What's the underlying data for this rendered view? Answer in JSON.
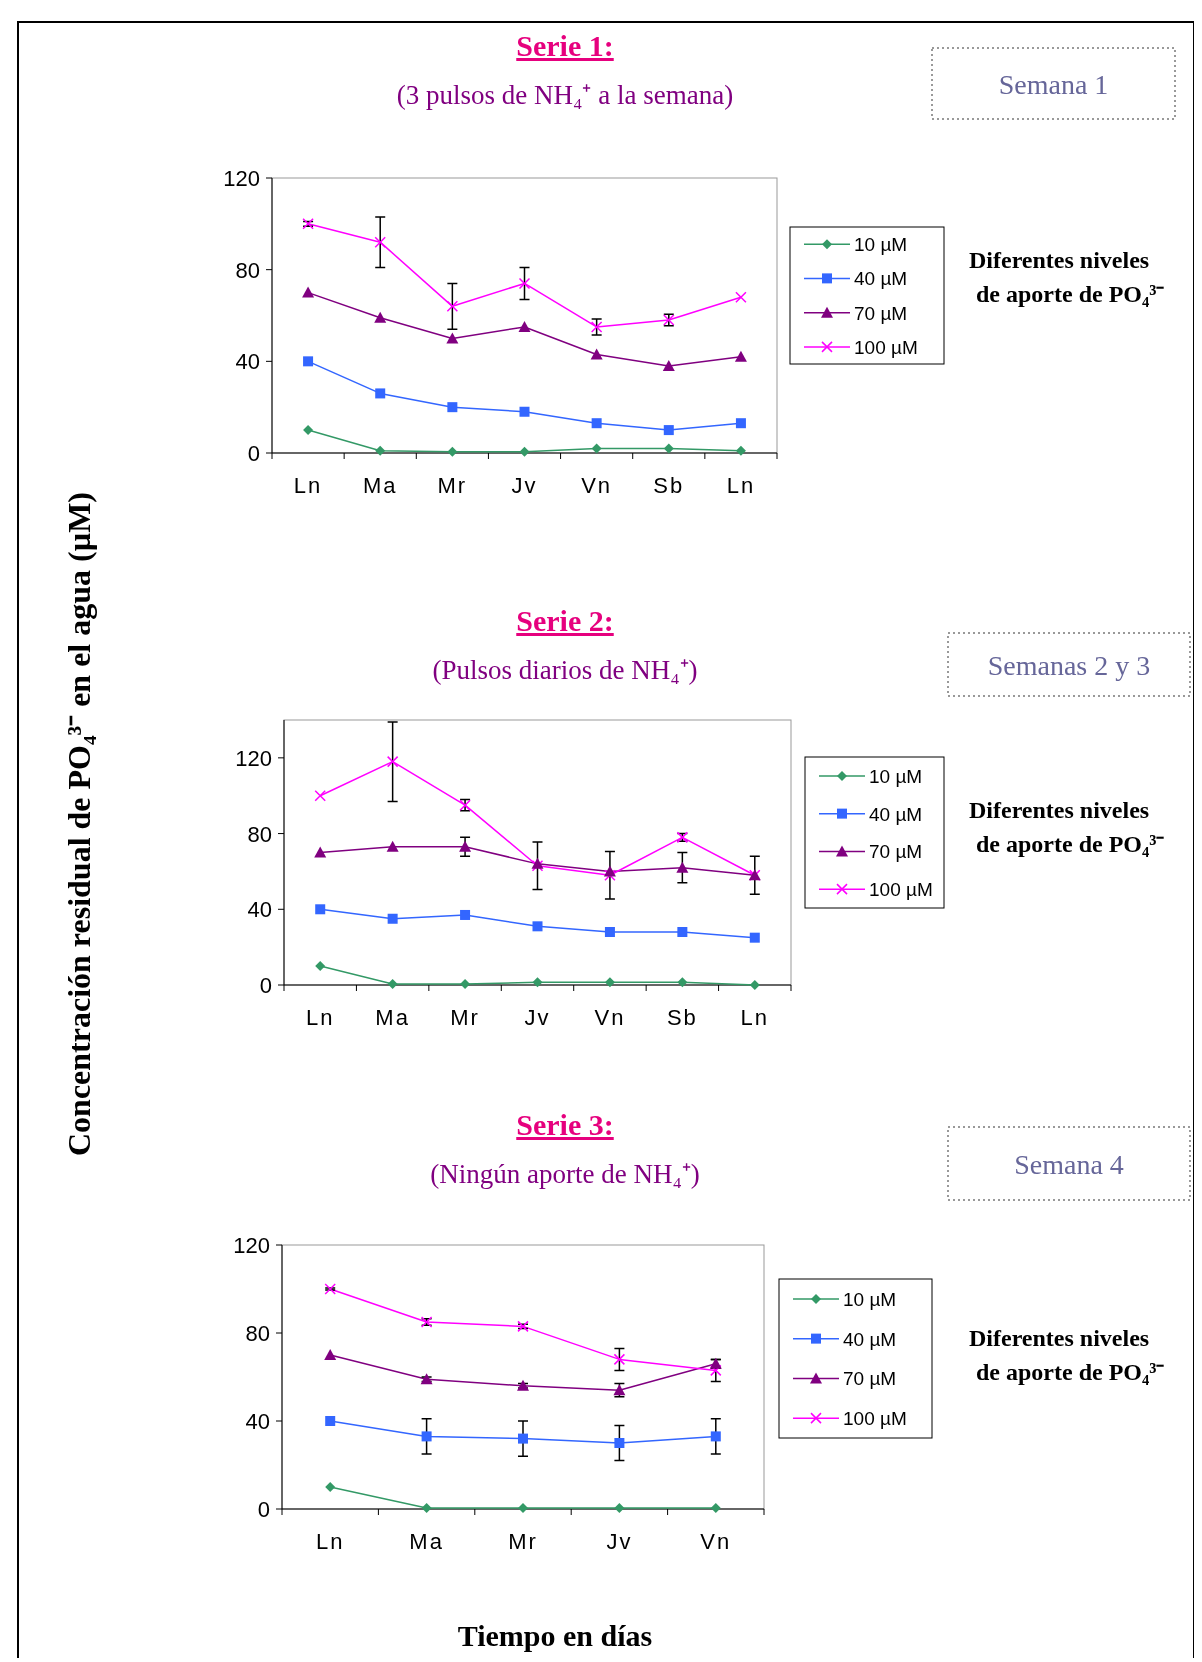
{
  "chart_data": [
    {
      "type": "line",
      "title": "Serie 1:",
      "subtitle": "(3 pulsos de NH₄⁺ a la semana)",
      "ylabel": "Concentración residual de PO₄³⁻ en el agua (µM)",
      "annotations": [
        "Semana 1",
        "Diferentes niveles de aporte de PO₄³⁻"
      ],
      "categories": [
        "Ln",
        "Ma",
        "Mr",
        "Jv",
        "Vn",
        "Sb",
        "Ln"
      ],
      "ylim": [
        0,
        120
      ],
      "yticks": [
        0,
        40,
        80,
        120
      ],
      "legend": "right",
      "grid": false,
      "series": [
        {
          "name": "10 µM",
          "color": "#339966",
          "marker": "diamond",
          "values": [
            10,
            1,
            0.5,
            0.5,
            2,
            2,
            1
          ]
        },
        {
          "name": "40 µM",
          "color": "#3366ff",
          "marker": "square",
          "values": [
            40,
            26,
            20,
            18,
            13,
            10,
            13
          ]
        },
        {
          "name": "70 µM",
          "color": "#800080",
          "marker": "triangle",
          "values": [
            70,
            59,
            50,
            55,
            43,
            38,
            42
          ]
        },
        {
          "name": "100 µM",
          "color": "#ff00ff",
          "marker": "cross",
          "values": [
            100,
            92,
            64,
            74,
            55,
            58,
            68
          ],
          "errors": [
            1,
            11,
            10,
            7,
            3.5,
            2.5,
            null
          ]
        }
      ]
    },
    {
      "type": "line",
      "title": "Serie 2:",
      "subtitle": "(Pulsos diarios de NH₄⁺)",
      "annotations": [
        "Semanas 2 y 3",
        "Diferentes niveles de aporte de PO₄³⁻"
      ],
      "categories": [
        "Ln",
        "Ma",
        "Mr",
        "Jv",
        "Vn",
        "Sb",
        "Ln"
      ],
      "ylim": [
        0,
        140
      ],
      "yticks": [
        0,
        40,
        80,
        120
      ],
      "legend": "right",
      "grid": false,
      "series": [
        {
          "name": "10 µM",
          "color": "#339966",
          "marker": "diamond",
          "values": [
            10,
            0.5,
            0.5,
            1.5,
            1.5,
            1.5,
            0
          ]
        },
        {
          "name": "40 µM",
          "color": "#3366ff",
          "marker": "square",
          "values": [
            40,
            35,
            37,
            31,
            28,
            28,
            25
          ]
        },
        {
          "name": "70 µM",
          "color": "#800080",
          "marker": "triangle",
          "values": [
            70,
            73,
            73,
            64,
            60,
            62,
            58
          ],
          "errors": [
            null,
            null,
            5,
            null,
            null,
            8,
            null
          ]
        },
        {
          "name": "100 µM",
          "color": "#ff00ff",
          "marker": "cross",
          "values": [
            100,
            118,
            95,
            63,
            58,
            78,
            58
          ],
          "errors": [
            null,
            21,
            3,
            12.5,
            12.5,
            2,
            10
          ]
        }
      ]
    },
    {
      "type": "line",
      "title": "Serie 3:",
      "subtitle": "(Ningún aporte de NH₄⁺)",
      "xlabel": "Tiempo en días",
      "annotations": [
        "Semana 4",
        "Diferentes niveles de aporte de PO₄³⁻"
      ],
      "categories": [
        "Ln",
        "Ma",
        "Mr",
        "Jv",
        "Vn"
      ],
      "ylim": [
        0,
        120
      ],
      "yticks": [
        0,
        40,
        80,
        120
      ],
      "legend": "right",
      "grid": false,
      "series": [
        {
          "name": "10 µM",
          "color": "#339966",
          "marker": "diamond",
          "values": [
            10,
            0.5,
            0.5,
            0.5,
            0.5
          ]
        },
        {
          "name": "40 µM",
          "color": "#3366ff",
          "marker": "square",
          "values": [
            40,
            33,
            32,
            30,
            33
          ],
          "errors": [
            null,
            8,
            8,
            8,
            8
          ]
        },
        {
          "name": "70 µM",
          "color": "#800080",
          "marker": "triangle",
          "values": [
            70,
            59,
            56,
            54,
            66
          ],
          "errors": [
            null,
            1,
            1,
            3,
            2
          ]
        },
        {
          "name": "100 µM",
          "color": "#ff00ff",
          "marker": "cross",
          "values": [
            100,
            85,
            83,
            68,
            63
          ],
          "errors": [
            0.5,
            1.5,
            1,
            5,
            5
          ]
        }
      ]
    }
  ]
}
